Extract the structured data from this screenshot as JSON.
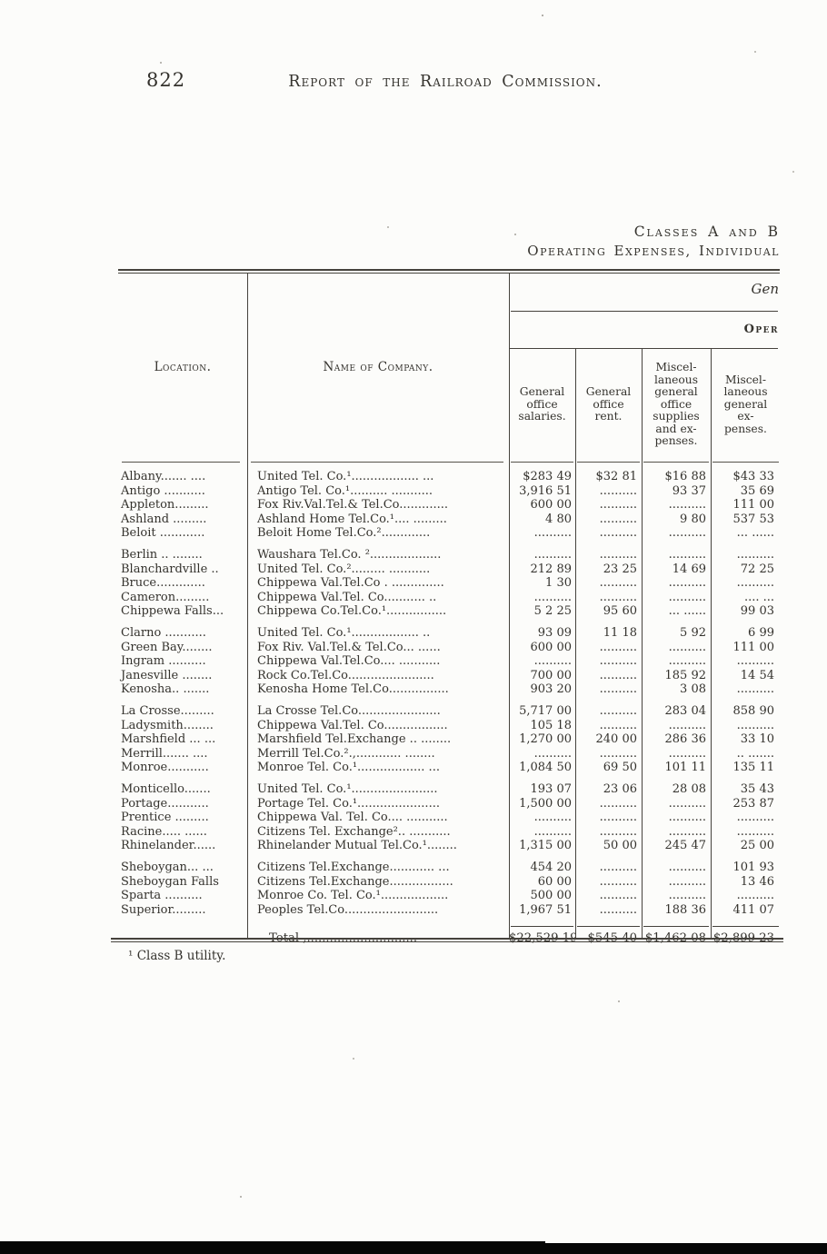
{
  "page": {
    "number": "822",
    "running_title": "Report of the Railroad Commission.",
    "caption_line1": "Classes A and B",
    "caption_line2": "Operating Expenses, Individual",
    "footnote": "¹ Class B utility."
  },
  "table": {
    "continuation_right_top": "Gen",
    "continuation_right_bottom": "Oper",
    "columns": {
      "location": "Location.",
      "company": "Name of Company.",
      "salaries": "General\noffice\nsalaries.",
      "rent": "General\noffice\nrent.",
      "supplies": "Miscel-\nlaneous\ngeneral\noffice\nsupplies\nand ex-\npenses.",
      "expenses": "Miscel-\nlaneous\ngeneral\nex-\npenses."
    },
    "groups": [
      {
        "rows": [
          {
            "loc": "Albany....... ....",
            "co": "United Tel. Co.¹.................. ...",
            "v1": "$283 49",
            "v2": "$32 81",
            "v3": "$16 88",
            "v4": "$43 33"
          },
          {
            "loc": "Antigo ...........",
            "co": "Antigo Tel. Co.¹.......... ...........",
            "v1": "3,916 51",
            "v2": "..........",
            "v3": "93 37",
            "v4": "35 69"
          },
          {
            "loc": "Appleton.........",
            "co": "Fox Riv.Val.Tel.& Tel.Co.............",
            "v1": "600 00",
            "v2": "..........",
            "v3": "..........",
            "v4": "111 00"
          },
          {
            "loc": "Ashland .........",
            "co": "Ashland Home Tel.Co.¹.... .........",
            "v1": "4 80",
            "v2": "..........",
            "v3": "9 80",
            "v4": "537 53"
          },
          {
            "loc": "Beloit ............",
            "co": "Beloit Home Tel.Co.².............",
            "v1": "..........",
            "v2": "..........",
            "v3": "..........",
            "v4": "... ......"
          }
        ]
      },
      {
        "rows": [
          {
            "loc": "Berlin .. ........",
            "co": "Waushara Tel.Co. ²...................",
            "v1": "..........",
            "v2": "..........",
            "v3": "..........",
            "v4": ".........."
          },
          {
            "loc": "Blanchardville ..",
            "co": "United Tel. Co.²......... ...........",
            "v1": "212 89",
            "v2": "23 25",
            "v3": "14 69",
            "v4": "72 25"
          },
          {
            "loc": "Bruce.............",
            "co": "Chippewa Val.Tel.Co . ..............",
            "v1": "1 30",
            "v2": "..........",
            "v3": "..........",
            "v4": ".........."
          },
          {
            "loc": "Cameron.........",
            "co": "Chippewa Val.Tel. Co........... ..",
            "v1": "..........",
            "v2": "..........",
            "v3": "..........",
            "v4": ".... ..."
          },
          {
            "loc": "Chippewa Falls...",
            "co": "Chippewa Co.Tel.Co.¹................",
            "v1": "5 2 25",
            "v2": "95 60",
            "v3": "... ......",
            "v4": "99 03"
          }
        ]
      },
      {
        "rows": [
          {
            "loc": "Clarno ...........",
            "co": "United Tel. Co.¹.................. ..",
            "v1": "93 09",
            "v2": "11 18",
            "v3": "5 92",
            "v4": "6 99"
          },
          {
            "loc": "Green Bay........",
            "co": "Fox Riv. Val.Tel.& Tel.Co... ......",
            "v1": "600 00",
            "v2": "..........",
            "v3": "..........",
            "v4": "111 00"
          },
          {
            "loc": "Ingram ..........",
            "co": "Chippewa Val.Tel.Co.... ...........",
            "v1": "..........",
            "v2": "..........",
            "v3": "..........",
            "v4": ".........."
          },
          {
            "loc": "Janesville ........",
            "co": "Rock Co.Tel.Co.......................",
            "v1": "700 00",
            "v2": "..........",
            "v3": "185 92",
            "v4": "14 54"
          },
          {
            "loc": "Kenosha.. .......",
            "co": "Kenosha Home Tel.Co................",
            "v1": "903 20",
            "v2": "..........",
            "v3": "3 08",
            "v4": ".........."
          }
        ]
      },
      {
        "rows": [
          {
            "loc": "La Crosse.........",
            "co": "La Crosse Tel.Co......................",
            "v1": "5,717 00",
            "v2": "..........",
            "v3": "283 04",
            "v4": "858 90"
          },
          {
            "loc": "Ladysmith........",
            "co": "Chippewa Val.Tel. Co.................",
            "v1": "105 18",
            "v2": "..........",
            "v3": "..........",
            "v4": ".........."
          },
          {
            "loc": "Marshfield ... ...",
            "co": "Marshfield Tel.Exchange .. ........",
            "v1": "1,270 00",
            "v2": "240 00",
            "v3": "286 36",
            "v4": "33 10"
          },
          {
            "loc": "Merrill....... ....",
            "co": "Merrill Tel.Co.².,............ ........",
            "v1": "..........",
            "v2": "..........",
            "v3": "..........",
            "v4": ".. ......."
          },
          {
            "loc": "Monroe...........",
            "co": "Monroe Tel. Co.¹.................. ...",
            "v1": "1,084 50",
            "v2": "69 50",
            "v3": "101 11",
            "v4": "135 11"
          }
        ]
      },
      {
        "rows": [
          {
            "loc": "Monticello.......",
            "co": "United Tel. Co.¹.......................",
            "v1": "193 07",
            "v2": "23 06",
            "v3": "28 08",
            "v4": "35 43"
          },
          {
            "loc": "Portage...........",
            "co": "Portage Tel. Co.¹......................",
            "v1": "1,500 00",
            "v2": "..........",
            "v3": "..........",
            "v4": "253 87"
          },
          {
            "loc": "Prentice .........",
            "co": "Chippewa Val. Tel. Co.... ...........",
            "v1": "..........",
            "v2": "..........",
            "v3": "..........",
            "v4": ".........."
          },
          {
            "loc": "Racine..... ......",
            "co": "Citizens Tel. Exchange².. ...........",
            "v1": "..........",
            "v2": "..........",
            "v3": "..........",
            "v4": ".........."
          },
          {
            "loc": "Rhinelander......",
            "co": "Rhinelander Mutual Tel.Co.¹........",
            "v1": "1,315 00",
            "v2": "50 00",
            "v3": "245 47",
            "v4": "25 00"
          }
        ]
      },
      {
        "rows": [
          {
            "loc": "Sheboygan... ...",
            "co": "Citizens Tel.Exchange............ ...",
            "v1": "454 20",
            "v2": "..........",
            "v3": "..........",
            "v4": "101 93"
          },
          {
            "loc": "Sheboygan Falls",
            "co": "Citizens Tel.Exchange.................",
            "v1": "60 00",
            "v2": "..........",
            "v3": "..........",
            "v4": "13 46"
          },
          {
            "loc": "Sparta ..........",
            "co": "Monroe Co. Tel. Co.¹..................",
            "v1": "500 00",
            "v2": "..........",
            "v3": "..........",
            "v4": ".........."
          },
          {
            "loc": "Superior.........",
            "co": "Peoples Tel.Co.........................",
            "v1": "1,967 51",
            "v2": "..........",
            "v3": "188 36",
            "v4": "411 07"
          }
        ]
      }
    ],
    "total": {
      "label": "Total ,.............................",
      "v1": "$22,529 19",
      "v2": "$545 40",
      "v3": "$1,462 08",
      "v4": "$2,899 23"
    }
  }
}
